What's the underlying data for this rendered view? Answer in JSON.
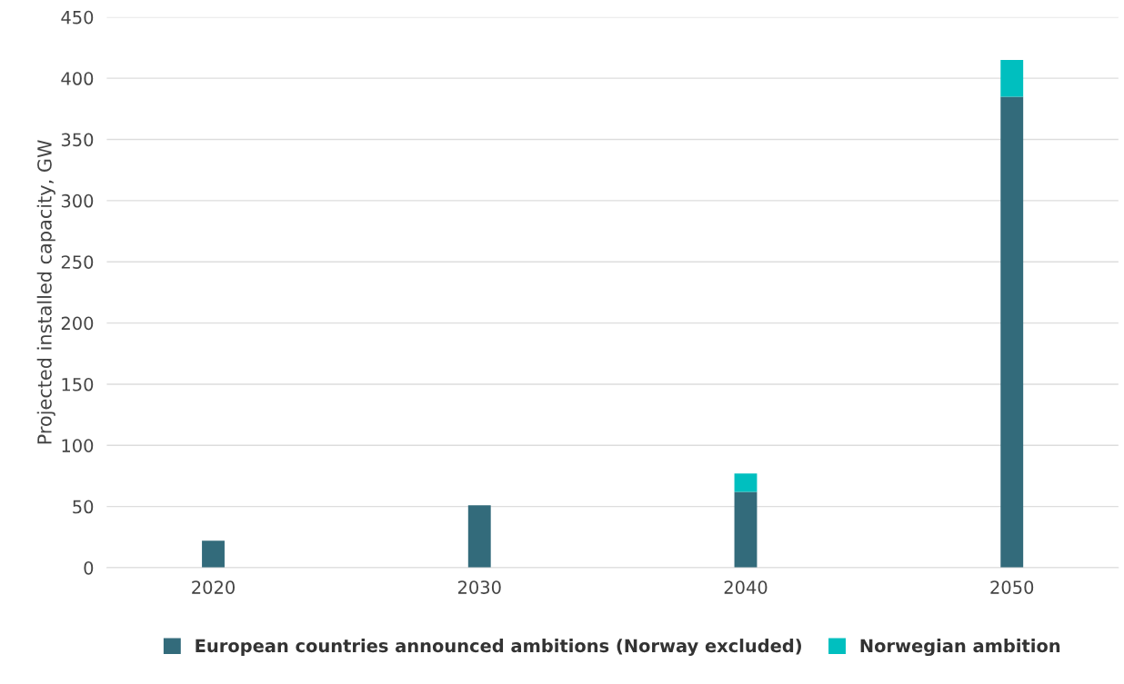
{
  "chart_data": {
    "type": "bar",
    "stacked": true,
    "ylabel": "Projected installed capacity, GW",
    "categories": [
      "2020",
      "2030",
      "2040",
      "2050"
    ],
    "series": [
      {
        "name": "European countries announced ambitions (Norway excluded)",
        "color": "#336b7b",
        "values": [
          22,
          51,
          62,
          385
        ]
      },
      {
        "name": "Norwegian ambition",
        "color": "#00bfbf",
        "values": [
          null,
          null,
          15,
          30
        ]
      }
    ],
    "ylim": [
      0,
      450
    ],
    "yticks": [
      0,
      50,
      100,
      150,
      200,
      250,
      300,
      350,
      400,
      450
    ],
    "grid": "y",
    "legend": "bottom"
  }
}
